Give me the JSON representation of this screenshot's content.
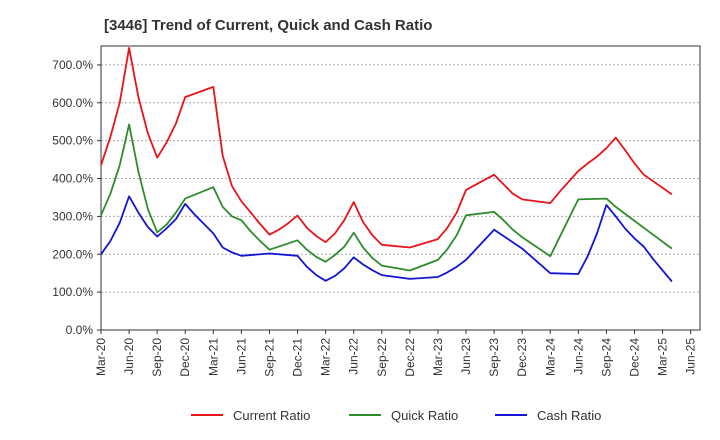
{
  "chart_data": {
    "type": "line",
    "title": "[3446]  Trend of Current, Quick and Cash Ratio",
    "xlabel": "",
    "ylabel": "",
    "ylim": [
      0,
      750
    ],
    "y_ticks": [
      0,
      100,
      200,
      300,
      400,
      500,
      600,
      700
    ],
    "y_tick_labels": [
      "0.0%",
      "100.0%",
      "200.0%",
      "300.0%",
      "400.0%",
      "500.0%",
      "600.0%",
      "700.0%"
    ],
    "x_tick_labels": [
      "Mar-20",
      "Jun-20",
      "Sep-20",
      "Dec-20",
      "Mar-21",
      "Jun-21",
      "Sep-21",
      "Dec-21",
      "Mar-22",
      "Jun-22",
      "Sep-22",
      "Dec-22",
      "Mar-23",
      "Jun-23",
      "Sep-23",
      "Dec-23",
      "Mar-24",
      "Jun-24",
      "Sep-24",
      "Dec-24",
      "Mar-25",
      "Jun-25"
    ],
    "x_count": 64,
    "x_tick_step": 3,
    "grid": "horizontal-dashed",
    "legend_position": "bottom",
    "series": [
      {
        "name": "Current Ratio",
        "color": "#e8141b",
        "points": [
          [
            0,
            435
          ],
          [
            1,
            510
          ],
          [
            2,
            600
          ],
          [
            3,
            745
          ],
          [
            4,
            615
          ],
          [
            5,
            520
          ],
          [
            6,
            455
          ],
          [
            7,
            495
          ],
          [
            8,
            545
          ],
          [
            9,
            615
          ],
          [
            12,
            642
          ],
          [
            13,
            460
          ],
          [
            14,
            380
          ],
          [
            15,
            340
          ],
          [
            16,
            310
          ],
          [
            17,
            280
          ],
          [
            18,
            252
          ],
          [
            19,
            265
          ],
          [
            20,
            282
          ],
          [
            21,
            302
          ],
          [
            22,
            270
          ],
          [
            23,
            248
          ],
          [
            24,
            232
          ],
          [
            25,
            255
          ],
          [
            26,
            290
          ],
          [
            27,
            338
          ],
          [
            28,
            285
          ],
          [
            29,
            250
          ],
          [
            30,
            225
          ],
          [
            33,
            218
          ],
          [
            36,
            240
          ],
          [
            37,
            270
          ],
          [
            38,
            310
          ],
          [
            39,
            370
          ],
          [
            42,
            410
          ],
          [
            43,
            385
          ],
          [
            44,
            360
          ],
          [
            45,
            345
          ],
          [
            48,
            335
          ],
          [
            49,
            365
          ],
          [
            51,
            420
          ],
          [
            52,
            440
          ],
          [
            53,
            458
          ],
          [
            54,
            480
          ],
          [
            55,
            508
          ],
          [
            56,
            475
          ],
          [
            57,
            440
          ],
          [
            58,
            410
          ],
          [
            61,
            358
          ]
        ]
      },
      {
        "name": "Quick Ratio",
        "color": "#2e8b2e",
        "points": [
          [
            0,
            303
          ],
          [
            1,
            360
          ],
          [
            2,
            435
          ],
          [
            3,
            543
          ],
          [
            4,
            418
          ],
          [
            5,
            320
          ],
          [
            6,
            258
          ],
          [
            7,
            278
          ],
          [
            8,
            310
          ],
          [
            9,
            347
          ],
          [
            12,
            377
          ],
          [
            13,
            325
          ],
          [
            14,
            300
          ],
          [
            15,
            290
          ],
          [
            16,
            260
          ],
          [
            17,
            235
          ],
          [
            18,
            212
          ],
          [
            21,
            237
          ],
          [
            22,
            212
          ],
          [
            23,
            193
          ],
          [
            24,
            180
          ],
          [
            25,
            198
          ],
          [
            26,
            220
          ],
          [
            27,
            257
          ],
          [
            28,
            218
          ],
          [
            29,
            190
          ],
          [
            30,
            170
          ],
          [
            33,
            157
          ],
          [
            36,
            185
          ],
          [
            37,
            213
          ],
          [
            38,
            250
          ],
          [
            39,
            303
          ],
          [
            42,
            312
          ],
          [
            43,
            290
          ],
          [
            44,
            265
          ],
          [
            45,
            245
          ],
          [
            48,
            195
          ],
          [
            49,
            245
          ],
          [
            51,
            345
          ],
          [
            54,
            347
          ],
          [
            55,
            325
          ],
          [
            58,
            270
          ],
          [
            61,
            215
          ]
        ]
      },
      {
        "name": "Cash Ratio",
        "color": "#1414d4",
        "points": [
          [
            0,
            200
          ],
          [
            1,
            235
          ],
          [
            2,
            283
          ],
          [
            3,
            353
          ],
          [
            4,
            310
          ],
          [
            5,
            272
          ],
          [
            6,
            247
          ],
          [
            7,
            268
          ],
          [
            8,
            293
          ],
          [
            9,
            333
          ],
          [
            10,
            305
          ],
          [
            11,
            280
          ],
          [
            12,
            255
          ],
          [
            13,
            218
          ],
          [
            14,
            205
          ],
          [
            15,
            196
          ],
          [
            18,
            202
          ],
          [
            21,
            196
          ],
          [
            22,
            167
          ],
          [
            23,
            145
          ],
          [
            24,
            130
          ],
          [
            25,
            143
          ],
          [
            26,
            163
          ],
          [
            27,
            192
          ],
          [
            28,
            173
          ],
          [
            29,
            158
          ],
          [
            30,
            145
          ],
          [
            33,
            135
          ],
          [
            36,
            140
          ],
          [
            37,
            152
          ],
          [
            38,
            167
          ],
          [
            39,
            185
          ],
          [
            42,
            265
          ],
          [
            45,
            215
          ],
          [
            48,
            150
          ],
          [
            51,
            148
          ],
          [
            52,
            195
          ],
          [
            53,
            255
          ],
          [
            54,
            330
          ],
          [
            55,
            300
          ],
          [
            56,
            268
          ],
          [
            57,
            242
          ],
          [
            58,
            220
          ],
          [
            59,
            187
          ],
          [
            61,
            128
          ]
        ]
      }
    ]
  }
}
